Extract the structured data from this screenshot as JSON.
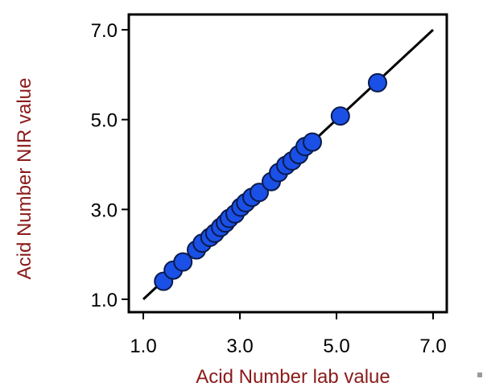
{
  "chart_data": {
    "type": "scatter",
    "xlabel": "Acid Number lab value",
    "ylabel": "Acid Number NIR value",
    "xlim": [
      1.0,
      7.0
    ],
    "ylim": [
      1.0,
      7.0
    ],
    "xticks": [
      "1.0",
      "3.0",
      "5.0",
      "7.0"
    ],
    "yticks": [
      "1.0",
      "3.0",
      "5.0",
      "7.0"
    ],
    "grid": false,
    "legend": "none",
    "fit_line": {
      "x": [
        1.0,
        7.0
      ],
      "y": [
        1.0,
        7.0
      ]
    },
    "series": [
      {
        "color": "#1a50e6",
        "x": [
          1.42,
          1.62,
          1.82,
          2.1,
          2.22,
          2.38,
          2.48,
          2.6,
          2.7,
          2.78,
          2.9,
          3.02,
          3.12,
          3.25,
          3.4,
          3.65,
          3.8,
          3.95,
          4.08,
          4.22,
          4.35,
          4.5,
          5.08,
          5.85
        ],
        "y": [
          1.4,
          1.65,
          1.83,
          2.1,
          2.25,
          2.38,
          2.47,
          2.6,
          2.7,
          2.8,
          2.9,
          3.05,
          3.15,
          3.27,
          3.38,
          3.62,
          3.82,
          3.98,
          4.08,
          4.22,
          4.4,
          4.5,
          5.08,
          5.82
        ]
      }
    ]
  }
}
